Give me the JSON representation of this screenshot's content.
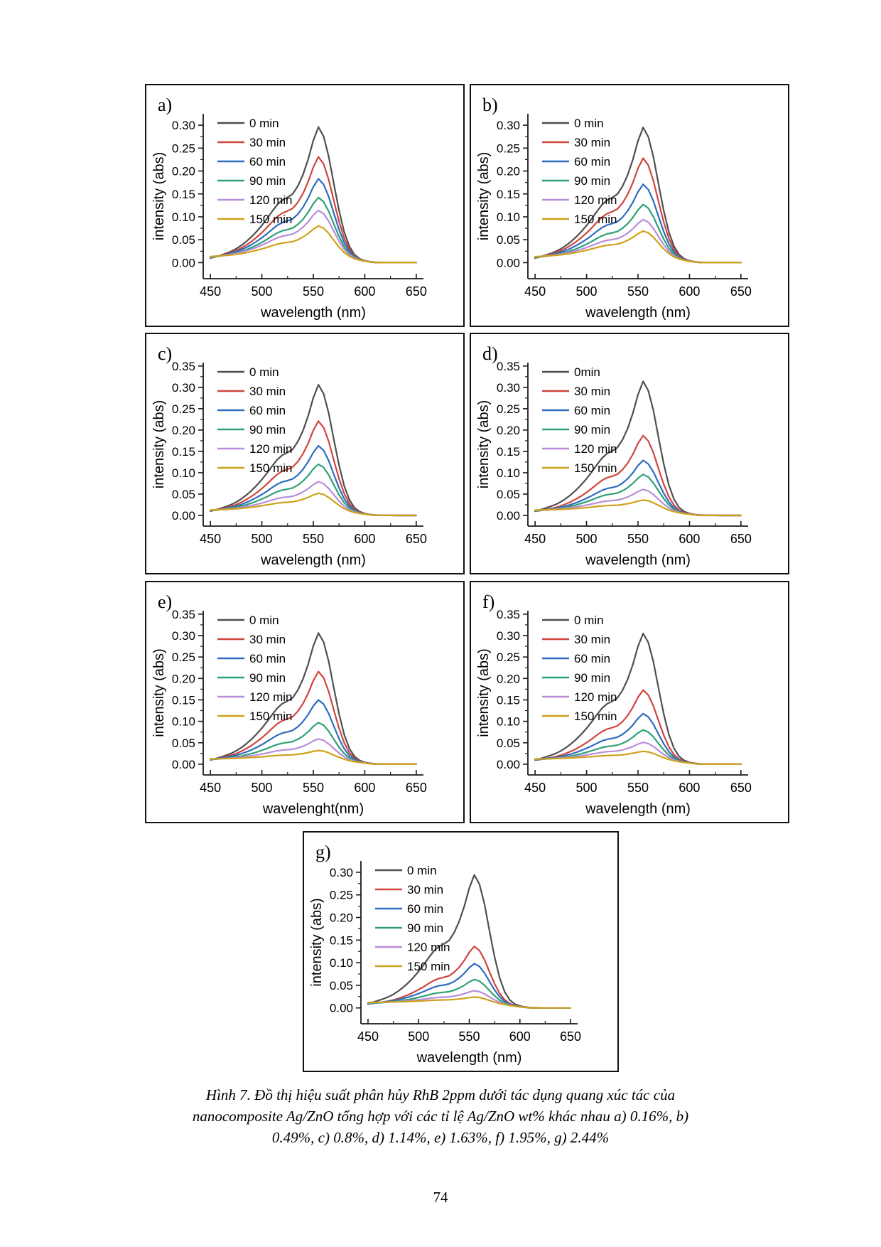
{
  "page": {
    "number": "74"
  },
  "caption": {
    "line1": "Hình 7. Đồ thị hiệu suất phân hủy RhB 2ppm dưới tác dụng quang xúc tác của",
    "line2": "nanocomposite Ag/ZnO tổng hợp với các tỉ lệ Ag/ZnO wt% khác nhau a) 0.16%, b)",
    "line3": "0.49%, c) 0.8%, d) 1.14%, e) 1.63%, f) 1.95%, g) 2.44%"
  },
  "chart_data": {
    "type": "line",
    "description": "UV-Vis absorption spectra of RhB (2 ppm) during photocatalytic degradation with Ag/ZnO nanocomposites; one panel per Ag wt%, one curve per irradiation time",
    "x_domain": [
      443,
      657
    ],
    "x_major_ticks": [
      450,
      500,
      550,
      600,
      650
    ],
    "x_minor_step": 25,
    "curve_model": {
      "wavelengths_nm": [
        450,
        455,
        460,
        465,
        470,
        475,
        480,
        485,
        490,
        495,
        500,
        505,
        510,
        515,
        520,
        525,
        530,
        535,
        540,
        545,
        550,
        555,
        560,
        565,
        570,
        575,
        580,
        585,
        590,
        595,
        600,
        605,
        610,
        615,
        620,
        625,
        630,
        635,
        640,
        645,
        650
      ],
      "normalized_shape": [
        0.02,
        0.03,
        0.042,
        0.055,
        0.07,
        0.09,
        0.115,
        0.145,
        0.18,
        0.22,
        0.265,
        0.315,
        0.37,
        0.42,
        0.455,
        0.475,
        0.5,
        0.56,
        0.645,
        0.76,
        0.9,
        1.0,
        0.93,
        0.78,
        0.575,
        0.38,
        0.22,
        0.115,
        0.055,
        0.025,
        0.012,
        0.006,
        0.003,
        0.002,
        0.001,
        0.001,
        0.0,
        0.0,
        0.0,
        0.0,
        0.0
      ],
      "peak_wavelength_nm": 553,
      "baseline_fade_start_nm": 560,
      "baseline_fade_end_nm": 610
    },
    "panels": [
      {
        "id": "a",
        "label": "a)",
        "xlabel": "wavelength (nm)",
        "ylabel": "intensity (abs)",
        "ylim": [
          -0.035,
          0.325
        ],
        "yticks": [
          0.0,
          0.05,
          0.1,
          0.15,
          0.2,
          0.25,
          0.3
        ],
        "legend_position": "top-left",
        "series": [
          {
            "name": "0 min",
            "color": "#4f4f4f",
            "peak": 0.292,
            "baseline": 0.004
          },
          {
            "name": "30 min",
            "color": "#d0453d",
            "peak": 0.225,
            "baseline": 0.006
          },
          {
            "name": "60 min",
            "color": "#2e6cbf",
            "peak": 0.175,
            "baseline": 0.008
          },
          {
            "name": "90 min",
            "color": "#2fa076",
            "peak": 0.133,
            "baseline": 0.009
          },
          {
            "name": "120 min",
            "color": "#b88dd9",
            "peak": 0.103,
            "baseline": 0.011
          },
          {
            "name": "150 min",
            "color": "#cfa11a",
            "peak": 0.068,
            "baseline": 0.012
          }
        ]
      },
      {
        "id": "b",
        "label": "b)",
        "xlabel": "wavelength (nm)",
        "ylabel": "intensity (abs)",
        "ylim": [
          -0.035,
          0.325
        ],
        "yticks": [
          0.0,
          0.05,
          0.1,
          0.15,
          0.2,
          0.25,
          0.3
        ],
        "legend_position": "top-left",
        "series": [
          {
            "name": "0 min",
            "color": "#4f4f4f",
            "peak": 0.291,
            "baseline": 0.004
          },
          {
            "name": "30 min",
            "color": "#d0453d",
            "peak": 0.222,
            "baseline": 0.006
          },
          {
            "name": "60 min",
            "color": "#2e6cbf",
            "peak": 0.163,
            "baseline": 0.008
          },
          {
            "name": "90 min",
            "color": "#2fa076",
            "peak": 0.118,
            "baseline": 0.009
          },
          {
            "name": "120 min",
            "color": "#b88dd9",
            "peak": 0.083,
            "baseline": 0.011
          },
          {
            "name": "150 min",
            "color": "#cfa11a",
            "peak": 0.057,
            "baseline": 0.012
          }
        ]
      },
      {
        "id": "c",
        "label": "c)",
        "xlabel": "wavelength (nm)",
        "ylabel": "intensity (abs)",
        "ylim": [
          -0.025,
          0.358
        ],
        "yticks": [
          0.0,
          0.05,
          0.1,
          0.15,
          0.2,
          0.25,
          0.3,
          0.35
        ],
        "legend_position": "top-left",
        "series": [
          {
            "name": "0 min",
            "color": "#4f4f4f",
            "peak": 0.302,
            "baseline": 0.004
          },
          {
            "name": "30 min",
            "color": "#d0453d",
            "peak": 0.215,
            "baseline": 0.006
          },
          {
            "name": "60 min",
            "color": "#2e6cbf",
            "peak": 0.155,
            "baseline": 0.008
          },
          {
            "name": "90 min",
            "color": "#2fa076",
            "peak": 0.111,
            "baseline": 0.009
          },
          {
            "name": "120 min",
            "color": "#b88dd9",
            "peak": 0.068,
            "baseline": 0.011
          },
          {
            "name": "150 min",
            "color": "#cfa11a",
            "peak": 0.04,
            "baseline": 0.012
          }
        ]
      },
      {
        "id": "d",
        "label": "d)",
        "xlabel": "wavelength (nm)",
        "ylabel": "intensity (abs)",
        "ylim": [
          -0.025,
          0.358
        ],
        "yticks": [
          0.0,
          0.05,
          0.1,
          0.15,
          0.2,
          0.25,
          0.3,
          0.35
        ],
        "legend_position": "top-left",
        "series": [
          {
            "name": "0min",
            "color": "#4f4f4f",
            "peak": 0.31,
            "baseline": 0.004
          },
          {
            "name": "30 min",
            "color": "#d0453d",
            "peak": 0.181,
            "baseline": 0.006
          },
          {
            "name": "60 min",
            "color": "#2e6cbf",
            "peak": 0.121,
            "baseline": 0.008
          },
          {
            "name": "90 min",
            "color": "#2fa076",
            "peak": 0.087,
            "baseline": 0.009
          },
          {
            "name": "120 min",
            "color": "#b88dd9",
            "peak": 0.05,
            "baseline": 0.011
          },
          {
            "name": "150 min",
            "color": "#cfa11a",
            "peak": 0.024,
            "baseline": 0.012
          }
        ]
      },
      {
        "id": "e",
        "label": "e)",
        "xlabel": "wavelenght(nm)",
        "ylabel": "intensity (abs)",
        "ylim": [
          -0.025,
          0.358
        ],
        "yticks": [
          0.0,
          0.05,
          0.1,
          0.15,
          0.2,
          0.25,
          0.3,
          0.35
        ],
        "legend_position": "top-left",
        "series": [
          {
            "name": "0 min",
            "color": "#4f4f4f",
            "peak": 0.302,
            "baseline": 0.004
          },
          {
            "name": "30 min",
            "color": "#d0453d",
            "peak": 0.21,
            "baseline": 0.006
          },
          {
            "name": "60 min",
            "color": "#2e6cbf",
            "peak": 0.142,
            "baseline": 0.008
          },
          {
            "name": "90 min",
            "color": "#2fa076",
            "peak": 0.088,
            "baseline": 0.009
          },
          {
            "name": "120 min",
            "color": "#b88dd9",
            "peak": 0.048,
            "baseline": 0.011
          },
          {
            "name": "150 min",
            "color": "#cfa11a",
            "peak": 0.02,
            "baseline": 0.012
          }
        ]
      },
      {
        "id": "f",
        "label": "f)",
        "xlabel": "wavelength (nm)",
        "ylabel": "intensity (abs)",
        "ylim": [
          -0.025,
          0.358
        ],
        "yticks": [
          0.0,
          0.05,
          0.1,
          0.15,
          0.2,
          0.25,
          0.3,
          0.35
        ],
        "legend_position": "top-left",
        "series": [
          {
            "name": "0 min",
            "color": "#4f4f4f",
            "peak": 0.301,
            "baseline": 0.004
          },
          {
            "name": "30 min",
            "color": "#d0453d",
            "peak": 0.167,
            "baseline": 0.006
          },
          {
            "name": "60 min",
            "color": "#2e6cbf",
            "peak": 0.11,
            "baseline": 0.008
          },
          {
            "name": "90 min",
            "color": "#2fa076",
            "peak": 0.071,
            "baseline": 0.009
          },
          {
            "name": "120 min",
            "color": "#b88dd9",
            "peak": 0.04,
            "baseline": 0.011
          },
          {
            "name": "150 min",
            "color": "#cfa11a",
            "peak": 0.018,
            "baseline": 0.012
          }
        ]
      },
      {
        "id": "g",
        "label": "g)",
        "xlabel": "wavelength (nm)",
        "ylabel": "intensity (abs)",
        "ylim": [
          -0.035,
          0.325
        ],
        "yticks": [
          0.0,
          0.05,
          0.1,
          0.15,
          0.2,
          0.25,
          0.3
        ],
        "legend_position": "top-left",
        "series": [
          {
            "name": "0 min",
            "color": "#4f4f4f",
            "peak": 0.29,
            "baseline": 0.004
          },
          {
            "name": "30 min",
            "color": "#d0453d",
            "peak": 0.13,
            "baseline": 0.006
          },
          {
            "name": "60 min",
            "color": "#2e6cbf",
            "peak": 0.09,
            "baseline": 0.008
          },
          {
            "name": "90 min",
            "color": "#2fa076",
            "peak": 0.054,
            "baseline": 0.009
          },
          {
            "name": "120 min",
            "color": "#b88dd9",
            "peak": 0.027,
            "baseline": 0.011
          },
          {
            "name": "150 min",
            "color": "#cfa11a",
            "peak": 0.012,
            "baseline": 0.012
          }
        ]
      }
    ]
  }
}
